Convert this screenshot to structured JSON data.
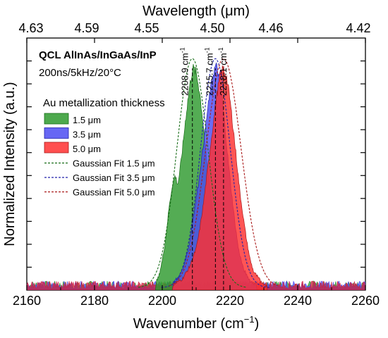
{
  "chart_data": {
    "type": "area",
    "x_axis": {
      "label": "Wavenumber (cm",
      "label_sup": "−1",
      "label_end": ")",
      "range": [
        2160,
        2260
      ],
      "ticks": [
        2160,
        2180,
        2200,
        2220,
        2240,
        2260
      ]
    },
    "x2_axis": {
      "label": "Wavelength (μm)",
      "ticks": [
        {
          "label": "4.63",
          "wavenumber": 2159.8
        },
        {
          "label": "4.59",
          "wavenumber": 2178.6
        },
        {
          "label": "4.55",
          "wavenumber": 2197.8
        },
        {
          "label": "4.50",
          "wavenumber": 2222.2
        },
        {
          "label": "4.46",
          "wavenumber": 2242.2
        },
        {
          "label": "4.42",
          "wavenumber": 2262.4
        }
      ]
    },
    "y_axis": {
      "label": "Normalized Intensity (a.u.)",
      "range": [
        0,
        1.1
      ]
    },
    "header": {
      "title": "QCL AlInAs/InGaAs/InP",
      "subtitle": "200ns/5kHz/20°C"
    },
    "legend": {
      "title": "Au metallization thickness",
      "entries": [
        {
          "label": "1.5 μm",
          "kind": "fill"
        },
        {
          "label": "3.5 μm",
          "kind": "fill"
        },
        {
          "label": "5.0 μm",
          "kind": "fill"
        },
        {
          "label": "Gaussian Fit 1.5 μm",
          "kind": "dash"
        },
        {
          "label": "Gaussian Fit 3.5 μm",
          "kind": "dash"
        },
        {
          "label": "Gaussian Fit 5.0 μm",
          "kind": "dash"
        }
      ]
    },
    "series": [
      {
        "name": "1.5 μm",
        "color": "#2e9a2e",
        "stroke": "#1a6e1a",
        "peak_cm": 2208.9,
        "sigma": 4.6,
        "points": [
          [
            2198,
            0.03
          ],
          [
            2199,
            0.06
          ],
          [
            2200,
            0.13
          ],
          [
            2201,
            0.22
          ],
          [
            2202,
            0.36
          ],
          [
            2203,
            0.46
          ],
          [
            2203.8,
            0.5
          ],
          [
            2204.6,
            0.46
          ],
          [
            2205.2,
            0.52
          ],
          [
            2206,
            0.62
          ],
          [
            2207,
            0.76
          ],
          [
            2208,
            0.88
          ],
          [
            2209,
            0.97
          ],
          [
            2210,
            0.95
          ],
          [
            2211,
            0.87
          ],
          [
            2212,
            0.74
          ],
          [
            2213,
            0.58
          ],
          [
            2214,
            0.45
          ],
          [
            2215,
            0.34
          ],
          [
            2216,
            0.25
          ],
          [
            2217,
            0.17
          ],
          [
            2218,
            0.11
          ],
          [
            2219,
            0.07
          ],
          [
            2220,
            0.05
          ],
          [
            2222,
            0.03
          ]
        ]
      },
      {
        "name": "3.5 μm",
        "color": "#4c4cf2",
        "stroke": "#2222aa",
        "peak_cm": 2215.7,
        "sigma": 4.4,
        "points": [
          [
            2203,
            0.03
          ],
          [
            2205,
            0.06
          ],
          [
            2206,
            0.09
          ],
          [
            2207,
            0.14
          ],
          [
            2208,
            0.2
          ],
          [
            2209,
            0.3
          ],
          [
            2210,
            0.4
          ],
          [
            2211,
            0.5
          ],
          [
            2212,
            0.62
          ],
          [
            2213,
            0.74
          ],
          [
            2214,
            0.85
          ],
          [
            2215,
            0.94
          ],
          [
            2215.8,
            0.98
          ],
          [
            2216.5,
            0.95
          ],
          [
            2217.5,
            0.86
          ],
          [
            2218.5,
            0.72
          ],
          [
            2219.5,
            0.56
          ],
          [
            2220.5,
            0.42
          ],
          [
            2221.5,
            0.29
          ],
          [
            2222.5,
            0.18
          ],
          [
            2224,
            0.09
          ],
          [
            2226,
            0.04
          ],
          [
            2228,
            0.02
          ]
        ]
      },
      {
        "name": "5.0 μm",
        "color": "#ff3030",
        "stroke": "#aa1a1a",
        "peak_cm": 2218.1,
        "sigma": 5.2,
        "points": [
          [
            2203,
            0.02
          ],
          [
            2206,
            0.05
          ],
          [
            2208,
            0.1
          ],
          [
            2210,
            0.18
          ],
          [
            2211,
            0.26
          ],
          [
            2212,
            0.36
          ],
          [
            2213,
            0.48
          ],
          [
            2214,
            0.6
          ],
          [
            2215,
            0.72
          ],
          [
            2216,
            0.84
          ],
          [
            2217,
            0.93
          ],
          [
            2218,
            0.97
          ],
          [
            2219,
            0.93
          ],
          [
            2220,
            0.83
          ],
          [
            2221,
            0.7
          ],
          [
            2222,
            0.56
          ],
          [
            2223,
            0.42
          ],
          [
            2224,
            0.31
          ],
          [
            2225,
            0.21
          ],
          [
            2226,
            0.13
          ],
          [
            2227,
            0.08
          ],
          [
            2229,
            0.04
          ],
          [
            2231,
            0.02
          ]
        ]
      }
    ],
    "annotations": [
      {
        "text": "2208.9 cm",
        "sup": "-1",
        "x": 2208.9
      },
      {
        "text": "2215.7 cm",
        "sup": "-1",
        "x": 2215.7
      },
      {
        "text": "2218.1 cm",
        "sup": "-1",
        "x": 2218.1
      }
    ]
  }
}
